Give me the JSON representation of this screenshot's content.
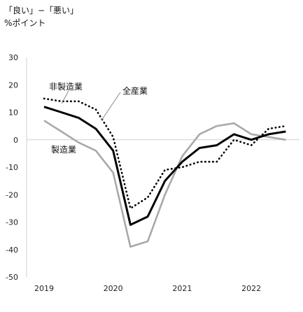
{
  "chart_data": {
    "type": "line",
    "title_line1": "「良い」−「悪い」",
    "title_line2": "%ポイント",
    "xlabel": "",
    "ylabel": "",
    "ylim": [
      -50,
      30
    ],
    "yticks": [
      30,
      20,
      10,
      0,
      -10,
      -20,
      -30,
      -40,
      -50
    ],
    "xlim": [
      2019.0,
      2022.75
    ],
    "xticks": [
      "2019",
      "2020",
      "2021",
      "2022"
    ],
    "grid": false,
    "legend": "none",
    "series": [
      {
        "name": "全産業",
        "color": "#000000",
        "style": "solid-bold",
        "x": [
          2019.0,
          2019.25,
          2019.5,
          2019.75,
          2020.0,
          2020.25,
          2020.5,
          2020.75,
          2021.0,
          2021.25,
          2021.5,
          2021.75,
          2022.0,
          2022.25,
          2022.5
        ],
        "values": [
          12,
          10,
          8,
          4,
          -4,
          -31,
          -28,
          -15,
          -8,
          -3,
          -2,
          2,
          0,
          2,
          3
        ]
      },
      {
        "name": "非製造業",
        "color": "#000000",
        "style": "dotted",
        "x": [
          2019.0,
          2019.25,
          2019.5,
          2019.75,
          2020.0,
          2020.25,
          2020.5,
          2020.75,
          2021.0,
          2021.25,
          2021.5,
          2021.75,
          2022.0,
          2022.25,
          2022.5
        ],
        "values": [
          15,
          14,
          14,
          11,
          1,
          -25,
          -21,
          -11,
          -10,
          -8,
          -8,
          0,
          -2,
          4,
          5
        ]
      },
      {
        "name": "製造業",
        "color": "#a9a9a9",
        "style": "solid",
        "x": [
          2019.0,
          2019.25,
          2019.5,
          2019.75,
          2020.0,
          2020.25,
          2020.5,
          2020.75,
          2021.0,
          2021.25,
          2021.5,
          2021.75,
          2022.0,
          2022.25,
          2022.5
        ],
        "values": [
          7,
          3,
          -1,
          -4,
          -12,
          -39,
          -37,
          -20,
          -6,
          2,
          5,
          6,
          2,
          1,
          0
        ]
      }
    ],
    "annotations": [
      {
        "text": "全産業",
        "series": "全産業"
      },
      {
        "text": "非製造業",
        "series": "非製造業"
      },
      {
        "text": "製造業",
        "series": "製造業"
      }
    ]
  }
}
